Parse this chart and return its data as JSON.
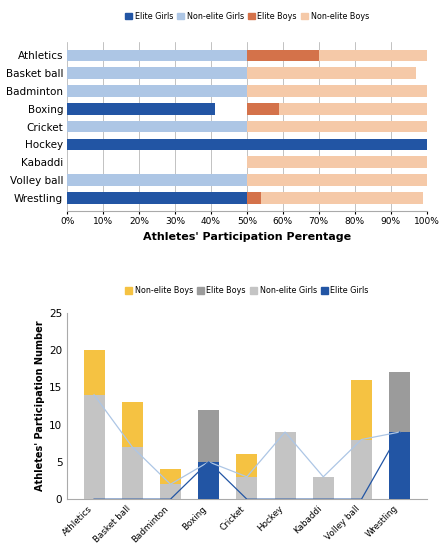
{
  "sports_top": [
    "Wrestling",
    "Volley ball",
    "Kabaddi",
    "Hockey",
    "Cricket",
    "Boxing",
    "Badminton",
    "Basket ball",
    "Athletics"
  ],
  "sports_bottom": [
    "Athletics",
    "Basket ball",
    "Badminton",
    "Boxing",
    "Cricket",
    "Hockey",
    "Kabaddi",
    "Volley ball",
    "Wrestling"
  ],
  "top_elite_girls": [
    51,
    0,
    0,
    100,
    0,
    41,
    0,
    0,
    0
  ],
  "top_nonelite_girls": [
    0,
    50,
    0,
    0,
    50,
    0,
    50,
    53,
    50
  ],
  "top_elite_boys": [
    4,
    0,
    0,
    0,
    0,
    9,
    0,
    0,
    20
  ],
  "top_nonelite_boys": [
    45,
    50,
    100,
    0,
    50,
    50,
    50,
    47,
    30
  ],
  "color_elite_girls": "#2255a4",
  "color_nonelite_girls": "#adc6e5",
  "color_elite_boys": "#d4724a",
  "color_nonelite_boys": "#f5c9a8",
  "bottom_nonelite_boys": [
    20,
    13,
    4,
    12,
    6,
    9,
    3,
    16,
    17
  ],
  "bottom_elite_boys": [
    14,
    7,
    2,
    12,
    3,
    9,
    3,
    8,
    17
  ],
  "bottom_nonelite_girls": [
    14,
    7,
    2,
    5,
    3,
    9,
    3,
    8,
    9
  ],
  "bottom_elite_girls": [
    0,
    0,
    0,
    5,
    0,
    0,
    0,
    0,
    9
  ],
  "color_bottom_nonelite_boys": "#f5c242",
  "color_bottom_elite_boys": "#9b9b9b",
  "color_bottom_nonelite_girls": "#c4c4c4",
  "color_bottom_elite_girls": "#2255a4",
  "line_color_nonelite_girls": "#adc6e5",
  "line_color_elite_girls": "#2255a4",
  "xlabel_top": "Athletes' Participation Perentage",
  "ylabel_bottom": "Athletes' Participation Number",
  "yticks_bottom": [
    0,
    5,
    10,
    15,
    20,
    25
  ],
  "xticks_top": [
    0,
    10,
    20,
    30,
    40,
    50,
    60,
    70,
    80,
    90,
    100
  ]
}
